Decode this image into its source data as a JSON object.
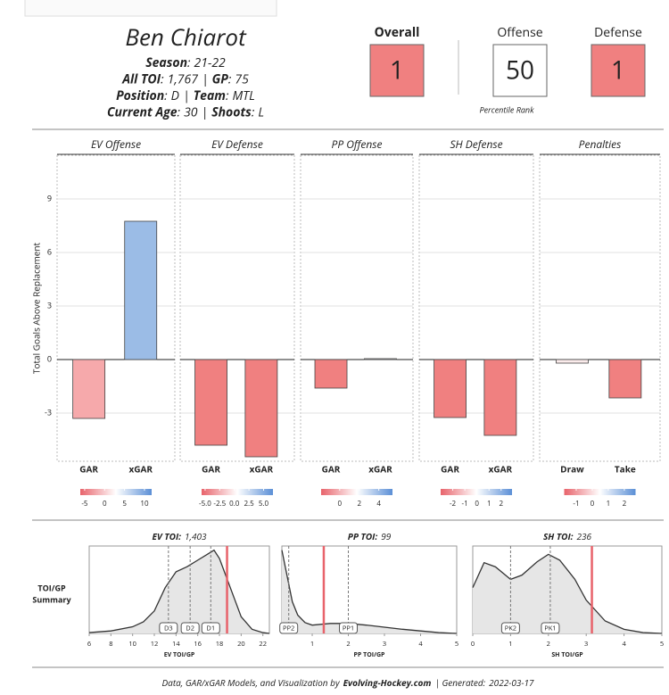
{
  "header": {
    "name": "Ben Chiarot",
    "label_sep": ":",
    "item_sep": "|",
    "lines": [
      [
        {
          "label": "Season",
          "value": "21-22"
        }
      ],
      [
        {
          "label": "All TOI",
          "value": "1,767"
        },
        {
          "label": "GP",
          "value": "75"
        }
      ],
      [
        {
          "label": "Position",
          "value": "D"
        },
        {
          "label": "Team",
          "value": "MTL"
        }
      ],
      [
        {
          "label": "Current Age",
          "value": "30"
        },
        {
          "label": "Shoots",
          "value": "L"
        }
      ]
    ]
  },
  "ratings": {
    "caption": "Percentile Rank",
    "items": [
      {
        "label": "Overall",
        "value": 1,
        "color": "#f08080"
      },
      {
        "label": "Offense",
        "value": 50,
        "color": "#ffffff"
      },
      {
        "label": "Defense",
        "value": 1,
        "color": "#f08080"
      }
    ]
  },
  "chart_data": [
    {
      "type": "bar",
      "ylabel": "Total Goals Above Replacement",
      "ylim": [
        -5.7,
        11.45
      ],
      "yticks": [
        -3,
        0,
        3,
        6,
        9
      ],
      "grid": true,
      "scale_colors": [
        "#e8636b",
        "#ffffff",
        "#5b8fd6"
      ],
      "panels": [
        {
          "title": "EV Offense",
          "categories": [
            "GAR",
            "xGAR"
          ],
          "values": [
            -3.3,
            7.75
          ],
          "colors": [
            "#f6a9ab",
            "#9bbce6"
          ],
          "scale": {
            "lim": [
              -6.1,
              11.8
            ],
            "ticks": [
              -5,
              0,
              5,
              10
            ]
          }
        },
        {
          "title": "EV Defense",
          "categories": [
            "GAR",
            "xGAR"
          ],
          "values": [
            -4.8,
            -5.45
          ],
          "colors": [
            "#f08080",
            "#f08080"
          ],
          "scale": {
            "lim": [
              -5.6,
              6.6
            ],
            "ticks": [
              {
                "value": -5,
                "label": "-5.0"
              },
              {
                "value": -2.5,
                "label": "-2.5"
              },
              {
                "value": 0,
                "label": "0.0"
              },
              {
                "value": 2.5,
                "label": "2.5"
              },
              {
                "value": 5,
                "label": "5.0"
              }
            ]
          }
        },
        {
          "title": "PP Offense",
          "categories": [
            "GAR",
            "xGAR"
          ],
          "values": [
            -1.6,
            0.05
          ],
          "colors": [
            "#f08080",
            "#f4f4fb"
          ],
          "scale": {
            "lim": [
              -1.9,
              5.4
            ],
            "ticks": [
              0,
              2,
              4
            ]
          }
        },
        {
          "title": "SH Defense",
          "categories": [
            "GAR",
            "xGAR"
          ],
          "values": [
            -3.25,
            -4.25
          ],
          "colors": [
            "#f08080",
            "#f08080"
          ],
          "scale": {
            "lim": [
              -3,
              2.9
            ],
            "ticks": [
              -2,
              -1,
              0,
              1,
              2
            ]
          }
        },
        {
          "title": "Penalties",
          "categories": [
            "Draw",
            "Take"
          ],
          "values": [
            -0.2,
            -2.15
          ],
          "colors": [
            "#fbecec",
            "#f08080"
          ],
          "scale": {
            "lim": [
              -1.75,
              2.7
            ],
            "ticks": [
              -1,
              0,
              1,
              2
            ]
          }
        }
      ]
    },
    {
      "type": "density",
      "ylabel": [
        "TOI/GP",
        "Summary"
      ],
      "ylim": [
        0,
        1.05
      ],
      "fill": "#e6e6e6",
      "player_color": "#e8636b",
      "panels": [
        {
          "title_label": "EV TOI:",
          "title_value": "1,403",
          "xlabel": "EV TOI/GP",
          "xlim": [
            6,
            22.6
          ],
          "xticks": [
            6,
            8,
            10,
            12,
            14,
            16,
            18,
            20,
            22
          ],
          "x": [
            6,
            8,
            10,
            11,
            12,
            13,
            14,
            15,
            16,
            17,
            17.5,
            18,
            19,
            20,
            21,
            22,
            22.6
          ],
          "density": [
            0.01,
            0.03,
            0.08,
            0.14,
            0.27,
            0.55,
            0.74,
            0.8,
            0.88,
            0.96,
            1,
            0.9,
            0.55,
            0.2,
            0.05,
            0.01,
            0
          ],
          "markers": [
            {
              "label": "D3",
              "value": 13.3
            },
            {
              "label": "D2",
              "value": 15.3
            },
            {
              "label": "D1",
              "value": 17.2
            }
          ],
          "player_value": 18.7
        },
        {
          "title_label": "PP TOI:",
          "title_value": "99",
          "xlabel": "PP TOI/GP",
          "xlim": [
            0.16,
            5
          ],
          "xticks": [
            1,
            2,
            3,
            4,
            5
          ],
          "x": [
            0.16,
            0.3,
            0.45,
            0.6,
            0.8,
            1,
            1.5,
            2,
            2.5,
            3,
            3.5,
            4,
            4.5,
            5
          ],
          "density": [
            1,
            0.7,
            0.38,
            0.22,
            0.13,
            0.1,
            0.12,
            0.12,
            0.1,
            0.075,
            0.05,
            0.03,
            0.01,
            0
          ],
          "markers": [
            {
              "label": "PP2",
              "value": 0.35
            },
            {
              "label": "PP1",
              "value": 2.0
            }
          ],
          "player_value": 1.32
        },
        {
          "title_label": "SH TOI:",
          "title_value": "236",
          "xlabel": "SH TOI/GP",
          "xlim": [
            0,
            5
          ],
          "xticks": [
            0,
            1,
            2,
            3,
            4,
            5
          ],
          "x": [
            0,
            0.3,
            0.6,
            1,
            1.3,
            1.7,
            2,
            2.3,
            2.7,
            3,
            3.5,
            4,
            4.5,
            5
          ],
          "density": [
            0.55,
            0.85,
            0.8,
            0.65,
            0.7,
            0.86,
            0.95,
            0.88,
            0.65,
            0.4,
            0.15,
            0.05,
            0.01,
            0
          ],
          "markers": [
            {
              "label": "PK2",
              "value": 1.0
            },
            {
              "label": "PK1",
              "value": 2.05
            }
          ],
          "player_value": 3.15
        }
      ]
    }
  ],
  "footer": {
    "parts": [
      "Data, GAR/xGAR Models, and Visualization by",
      "Evolving-Hockey.com",
      "| Generated:",
      "2022-03-17"
    ]
  }
}
